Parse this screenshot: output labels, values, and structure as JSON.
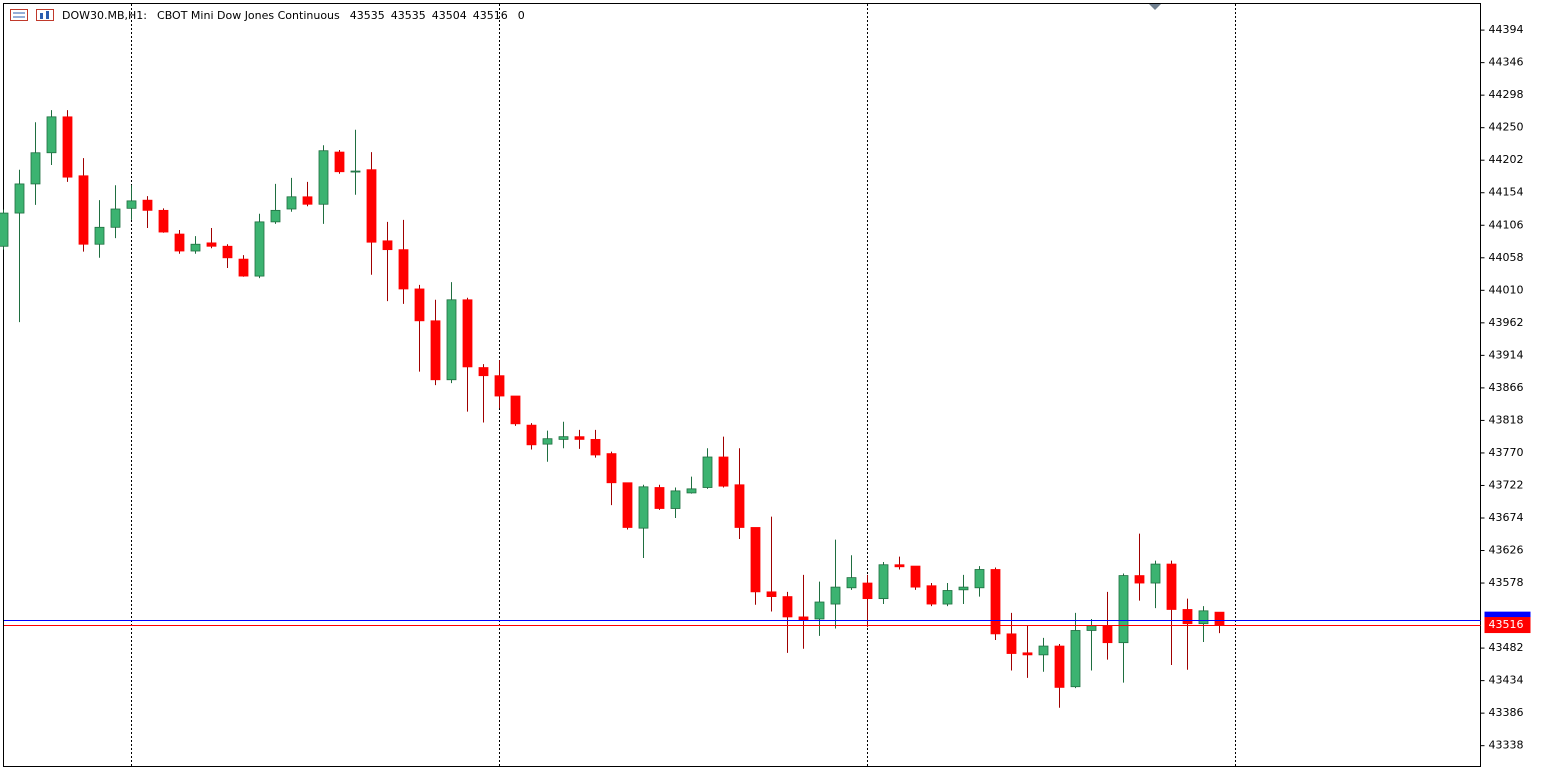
{
  "chart_data": {
    "type": "candlestick",
    "header": {
      "symbol": "DOW30.MB,H1:",
      "description": "CBOT Mini Dow Jones Continuous",
      "ohlc": [
        43535,
        43535,
        43504,
        43516
      ],
      "volume": 0
    },
    "open": [
      44075,
      44124,
      44167,
      44213,
      44266,
      44179,
      44078,
      44103,
      44131,
      44143,
      44128,
      44093,
      44068,
      44080,
      44075,
      44056,
      44031,
      44111,
      44130,
      44148,
      44137,
      44214,
      44185,
      44188,
      44083,
      44070,
      44012,
      43965,
      43878,
      43996,
      43896,
      43884,
      43854,
      43811,
      43783,
      43790,
      43794,
      43790,
      43769,
      43726,
      43659,
      43719,
      43688,
      43711,
      43719,
      43764,
      43723,
      43660,
      43565,
      43558,
      43528,
      43525,
      43547,
      43571,
      43578,
      43555,
      43605,
      43603,
      43574,
      43547,
      43568,
      43571,
      43598,
      43503,
      43475,
      43472,
      43485,
      43425,
      43508,
      43514,
      43490,
      43589,
      43578,
      43606,
      43539,
      43518,
      43535
    ],
    "high": [
      44129,
      44188,
      44258,
      44276,
      44276,
      44205,
      44143,
      44165,
      44165,
      44149,
      44131,
      44099,
      44090,
      44102,
      44078,
      44062,
      44123,
      44167,
      44176,
      44170,
      44224,
      44217,
      44247,
      44214,
      44111,
      44114,
      44018,
      43996,
      44022,
      43999,
      43901,
      43907,
      43854,
      43814,
      43803,
      43816,
      43804,
      43804,
      43772,
      43726,
      43723,
      43723,
      43719,
      43735,
      43777,
      43794,
      43777,
      43660,
      43676,
      43565,
      43590,
      43580,
      43642,
      43619,
      43590,
      43609,
      43617,
      43603,
      43578,
      43578,
      43590,
      43603,
      43601,
      43534,
      43515,
      43497,
      43488,
      43534,
      43525,
      43565,
      43592,
      43651,
      43611,
      43611,
      43555,
      43544,
      43535
    ],
    "low": [
      44070,
      43963,
      44136,
      44195,
      44170,
      44067,
      44058,
      44087,
      44114,
      44102,
      44095,
      44064,
      44064,
      44072,
      44043,
      44030,
      44028,
      44108,
      44126,
      44134,
      44108,
      44182,
      44151,
      44033,
      43994,
      43990,
      43890,
      43870,
      43873,
      43831,
      43815,
      43836,
      43810,
      43775,
      43757,
      43777,
      43776,
      43763,
      43693,
      43657,
      43615,
      43686,
      43674,
      43710,
      43717,
      43719,
      43643,
      43546,
      43536,
      43475,
      43481,
      43500,
      43511,
      43568,
      43513,
      43547,
      43598,
      43568,
      43544,
      43544,
      43547,
      43558,
      43494,
      43449,
      43438,
      43447,
      43394,
      43423,
      43449,
      43465,
      43431,
      43552,
      43541,
      43457,
      43450,
      43491,
      43504
    ],
    "close": [
      44124,
      44167,
      44213,
      44266,
      44177,
      44078,
      44103,
      44130,
      44142,
      44128,
      44096,
      44068,
      44078,
      44075,
      44058,
      44031,
      44111,
      44128,
      44148,
      44137,
      44216,
      44185,
      44186,
      44081,
      44070,
      44012,
      43965,
      43878,
      43996,
      43897,
      43884,
      43854,
      43813,
      43782,
      43791,
      43794,
      43790,
      43767,
      43726,
      43660,
      43720,
      43688,
      43714,
      43717,
      43764,
      43721,
      43660,
      43565,
      43558,
      43528,
      43524,
      43550,
      43572,
      43586,
      43555,
      43605,
      43602,
      43572,
      43547,
      43567,
      43572,
      43598,
      43503,
      43474,
      43472,
      43485,
      43424,
      43508,
      43515,
      43490,
      43589,
      43578,
      43606,
      43539,
      43518,
      43537,
      43516
    ],
    "up_color": "#3cb371",
    "down_color": "#ff0000",
    "ylim": [
      43308,
      44434
    ],
    "yticks": [
      44394,
      44346,
      44298,
      44250,
      44202,
      44154,
      44106,
      44058,
      44010,
      43962,
      43914,
      43866,
      43818,
      43770,
      43722,
      43674,
      43626,
      43578,
      43482,
      43434,
      43386,
      43338
    ],
    "ask": {
      "value": 43524,
      "color": "#0000ff"
    },
    "bid": {
      "value": 43516,
      "color": "#ff0000"
    }
  }
}
